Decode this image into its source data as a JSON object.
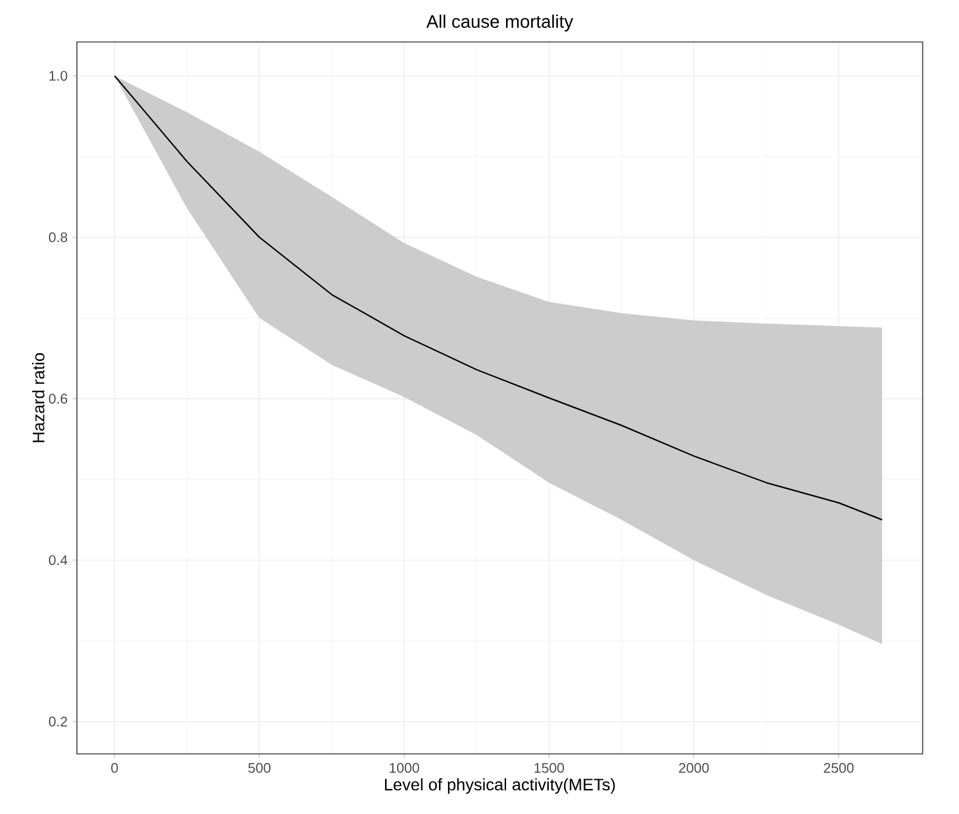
{
  "chart_data": {
    "type": "line",
    "title": "All cause mortality",
    "xlabel": "Level of physical activity(METs)",
    "ylabel": "Hazard ratio",
    "x": [
      0,
      250,
      500,
      750,
      1000,
      1250,
      1500,
      1750,
      2000,
      2250,
      2500,
      2650
    ],
    "series": [
      {
        "color": "#000000",
        "values": [
          1.0,
          0.894,
          0.8,
          0.729,
          0.678,
          0.636,
          0.601,
          0.567,
          0.529,
          0.496,
          0.471,
          0.45
        ],
        "lower": [
          1.0,
          0.836,
          0.7,
          0.642,
          0.602,
          0.555,
          0.496,
          0.45,
          0.4,
          0.357,
          0.32,
          0.296
        ],
        "upper": [
          1.0,
          0.955,
          0.906,
          0.85,
          0.793,
          0.751,
          0.72,
          0.706,
          0.697,
          0.693,
          0.69,
          0.688
        ]
      }
    ],
    "xlim": [
      -130,
      2790
    ],
    "ylim": [
      0.16,
      1.042
    ],
    "xticks": [
      0,
      500,
      1000,
      1500,
      2000,
      2500
    ],
    "yticks": [
      {
        "value": 0.2,
        "label": "0.2"
      },
      {
        "value": 0.4,
        "label": "0.4"
      },
      {
        "value": 0.6,
        "label": "0.6"
      },
      {
        "value": 0.8,
        "label": "0.8"
      },
      {
        "value": 1.0,
        "label": "1.0"
      }
    ],
    "grid": true,
    "line_style": "solid"
  }
}
